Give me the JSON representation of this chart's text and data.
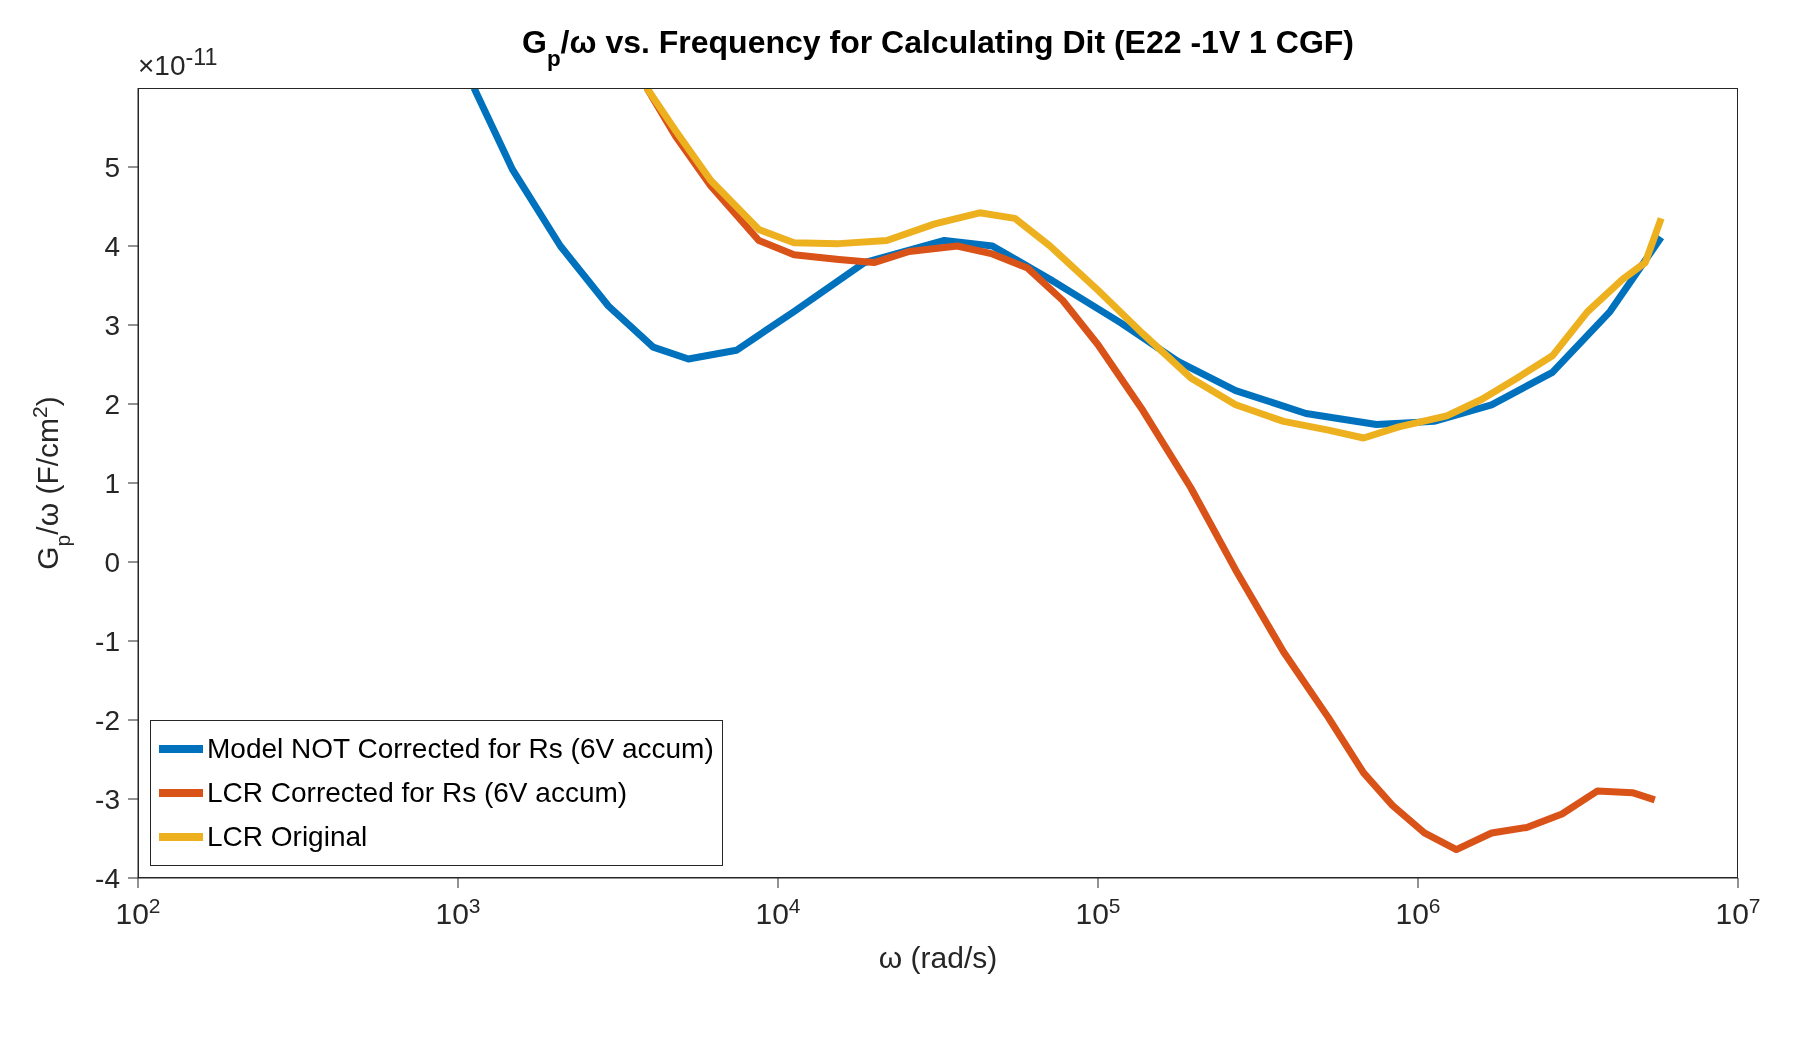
{
  "chart_data": {
    "type": "line",
    "title": "G$_{p}$/ω vs. Frequency for Calculating Dit (E22 -1V 1 CGF)",
    "xlabel": "ω (rad/s)",
    "ylabel": "G$_{p}$/ω (F/cm$^{2}$)",
    "annotations": [
      "×10$^{-11}$"
    ],
    "log": "x",
    "xlim": [
      100,
      10000000
    ],
    "xticks": [
      {
        "value": 100,
        "label": "10$^{2}$"
      },
      {
        "value": 1000,
        "label": "10$^{3}$"
      },
      {
        "value": 10000,
        "label": "10$^{4}$"
      },
      {
        "value": 100000,
        "label": "10$^{5}$"
      },
      {
        "value": 1000000,
        "label": "10$^{6}$"
      },
      {
        "value": 10000000,
        "label": "10$^{7}$"
      }
    ],
    "ylim": [
      -4,
      6
    ],
    "yticks": [
      -4,
      -3,
      -2,
      -1,
      0,
      1,
      2,
      3,
      4,
      5
    ],
    "grid": false,
    "legend": "bottom left",
    "marker": "none",
    "line_style": "solid",
    "series": [
      {
        "name": "Model NOT Corrected for Rs (6V accum)",
        "color": "#0072bd",
        "x": [
          1122,
          1479,
          2089,
          2951,
          4074,
          5248,
          7413,
          11220,
          18620,
          33110,
          46770,
          70790,
          117500,
          177800,
          269200,
          446700,
          741300,
          1122000,
          1698000,
          2630000,
          3981000,
          5754000
        ],
        "values": [
          6.0,
          4.97,
          4.0,
          3.24,
          2.72,
          2.57,
          2.68,
          3.17,
          3.79,
          4.07,
          4.0,
          3.58,
          3.03,
          2.54,
          2.17,
          1.88,
          1.74,
          1.78,
          1.99,
          2.4,
          3.17,
          4.11
        ]
      },
      {
        "name": "LCR Corrected for Rs (6V accum)",
        "color": "#d95319",
        "x": [
          3890,
          4786,
          6166,
          8710,
          11220,
          15490,
          19950,
          25700,
          36310,
          46770,
          60260,
          77620,
          100000,
          138000,
          195000,
          269200,
          380200,
          524800,
          676100,
          831800,
          1047000,
          1318000,
          1698000,
          2188000,
          2818000,
          3631000,
          4677000,
          5495000
        ],
        "values": [
          6.0,
          5.39,
          4.76,
          4.07,
          3.89,
          3.83,
          3.79,
          3.93,
          4.0,
          3.9,
          3.72,
          3.31,
          2.75,
          1.92,
          0.94,
          -0.1,
          -1.14,
          -1.97,
          -2.67,
          -3.08,
          -3.43,
          -3.64,
          -3.43,
          -3.36,
          -3.19,
          -2.9,
          -2.92,
          -3.01
        ]
      },
      {
        "name": "LCR Original",
        "color": "#edb120",
        "x": [
          3890,
          4786,
          6166,
          8710,
          11220,
          15490,
          21880,
          30900,
          42660,
          54950,
          70790,
          100000,
          138000,
          195000,
          269200,
          380200,
          524800,
          676100,
          871000,
          1230000,
          1585000,
          2042000,
          2630000,
          3388000,
          4365000,
          5129000,
          5754000
        ],
        "values": [
          6.0,
          5.46,
          4.83,
          4.21,
          4.04,
          4.03,
          4.07,
          4.28,
          4.42,
          4.35,
          4.0,
          3.44,
          2.89,
          2.33,
          1.99,
          1.78,
          1.67,
          1.57,
          1.71,
          1.85,
          2.06,
          2.33,
          2.61,
          3.17,
          3.58,
          3.79,
          4.35
        ]
      }
    ]
  }
}
